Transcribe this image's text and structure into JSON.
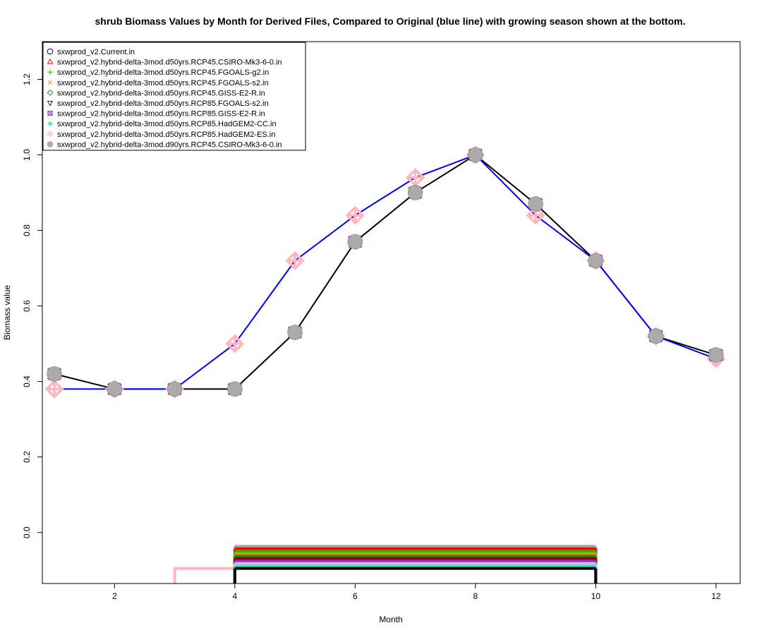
{
  "chart_data": {
    "type": "line",
    "title": "shrub Biomass Values by Month for Derived Files, Compared to Original (blue line) with growing season shown at the bottom.",
    "xlabel": "Month",
    "ylabel": "Biomass value",
    "xlim": [
      0.8,
      12.4
    ],
    "ylim": [
      -0.135,
      1.3
    ],
    "xticks": [
      2,
      4,
      6,
      8,
      10,
      12
    ],
    "yticks": [
      0.0,
      0.2,
      0.4,
      0.6,
      0.8,
      1.0,
      1.2
    ],
    "x": [
      1,
      2,
      3,
      4,
      5,
      6,
      7,
      8,
      9,
      10,
      11,
      12
    ],
    "original": {
      "color": "#0000ff",
      "values": [
        0.38,
        0.38,
        0.38,
        0.5,
        0.72,
        0.84,
        0.94,
        1.0,
        0.84,
        0.72,
        0.52,
        0.46
      ]
    },
    "derived_line": {
      "color": "#000000",
      "values": [
        0.42,
        0.38,
        0.38,
        0.38,
        0.53,
        0.77,
        0.9,
        1.0,
        0.87,
        0.72,
        0.52,
        0.47
      ]
    },
    "legend_position": "top-left",
    "series": [
      {
        "name": "sxwprod_v2.Current.in",
        "color": "#000000",
        "marker": "circle",
        "values": [
          0.42,
          0.38,
          0.38,
          0.38,
          0.53,
          0.77,
          0.9,
          1.0,
          0.87,
          0.72,
          0.52,
          0.47
        ]
      },
      {
        "name": "sxwprod_v2.hybrid-delta-3mod.d50yrs.RCP45.CSIRO-Mk3-6-0.in",
        "color": "#ff0000",
        "marker": "triangle",
        "values": [
          0.42,
          0.38,
          0.38,
          0.38,
          0.53,
          0.77,
          0.9,
          1.0,
          0.87,
          0.72,
          0.52,
          0.47
        ]
      },
      {
        "name": "sxwprod_v2.hybrid-delta-3mod.d50yrs.RCP45.FGOALS-g2.in",
        "color": "#00cc00",
        "marker": "plus",
        "values": [
          0.42,
          0.38,
          0.38,
          0.38,
          0.53,
          0.77,
          0.9,
          1.0,
          0.87,
          0.72,
          0.52,
          0.47
        ]
      },
      {
        "name": "sxwprod_v2.hybrid-delta-3mod.d50yrs.RCP45.FGOALS-s2.in",
        "color": "#ff8800",
        "marker": "x",
        "values": [
          0.42,
          0.38,
          0.38,
          0.38,
          0.53,
          0.77,
          0.9,
          1.0,
          0.87,
          0.72,
          0.52,
          0.47
        ]
      },
      {
        "name": "sxwprod_v2.hybrid-delta-3mod.d50yrs.RCP45.GISS-E2-R.in",
        "color": "#228b22",
        "marker": "diamond",
        "values": [
          0.42,
          0.38,
          0.38,
          0.38,
          0.53,
          0.77,
          0.9,
          1.0,
          0.87,
          0.72,
          0.52,
          0.47
        ]
      },
      {
        "name": "sxwprod_v2.hybrid-delta-3mod.d50yrs.RCP85.FGOALS-s2.in",
        "color": "#8b0000",
        "marker": "triangle-down",
        "values": [
          0.42,
          0.38,
          0.38,
          0.38,
          0.53,
          0.77,
          0.9,
          1.0,
          0.87,
          0.72,
          0.52,
          0.47
        ]
      },
      {
        "name": "sxwprod_v2.hybrid-delta-3mod.d50yrs.RCP85.GISS-E2-R.in",
        "color": "#8a2be2",
        "marker": "square-x",
        "values": [
          0.42,
          0.38,
          0.38,
          0.38,
          0.53,
          0.77,
          0.9,
          1.0,
          0.87,
          0.72,
          0.52,
          0.47
        ]
      },
      {
        "name": "sxwprod_v2.hybrid-delta-3mod.d50yrs.RCP85.HadGEM2-CC.in",
        "color": "#40e0d0",
        "marker": "asterisk",
        "values": [
          0.42,
          0.38,
          0.38,
          0.38,
          0.53,
          0.77,
          0.9,
          1.0,
          0.87,
          0.72,
          0.52,
          0.47
        ]
      },
      {
        "name": "sxwprod_v2.hybrid-delta-3mod.d50yrs.RCP85.HadGEM2-ES.in",
        "color": "#ffb6c1",
        "marker": "diamond-plus",
        "values": [
          0.38,
          0.38,
          0.38,
          0.5,
          0.72,
          0.84,
          0.94,
          1.0,
          0.84,
          0.72,
          0.52,
          0.46
        ]
      },
      {
        "name": "sxwprod_v2.hybrid-delta-3mod.d90yrs.RCP45.CSIRO-Mk3-6-0.in",
        "color": "#aaaaaa",
        "marker": "circle-filled",
        "values": [
          0.42,
          0.38,
          0.38,
          0.38,
          0.53,
          0.77,
          0.9,
          1.0,
          0.87,
          0.72,
          0.52,
          0.47
        ]
      }
    ],
    "growing_season": [
      {
        "color": "#ffb6c1",
        "start": 3,
        "end": 4
      },
      {
        "color": "#aaaaaa",
        "start": 4,
        "end": 10
      },
      {
        "color": "#ff0000",
        "start": 4,
        "end": 10
      },
      {
        "color": "#00cc00",
        "start": 4,
        "end": 10
      },
      {
        "color": "#ff8800",
        "start": 4,
        "end": 10
      },
      {
        "color": "#228b22",
        "start": 4,
        "end": 10
      },
      {
        "color": "#8b0000",
        "start": 4,
        "end": 10
      },
      {
        "color": "#8a2be2",
        "start": 4,
        "end": 10
      },
      {
        "color": "#ffb6c1",
        "start": 4,
        "end": 10
      },
      {
        "color": "#40e0d0",
        "start": 4,
        "end": 10
      },
      {
        "color": "#000000",
        "start": 4,
        "end": 10
      }
    ]
  }
}
